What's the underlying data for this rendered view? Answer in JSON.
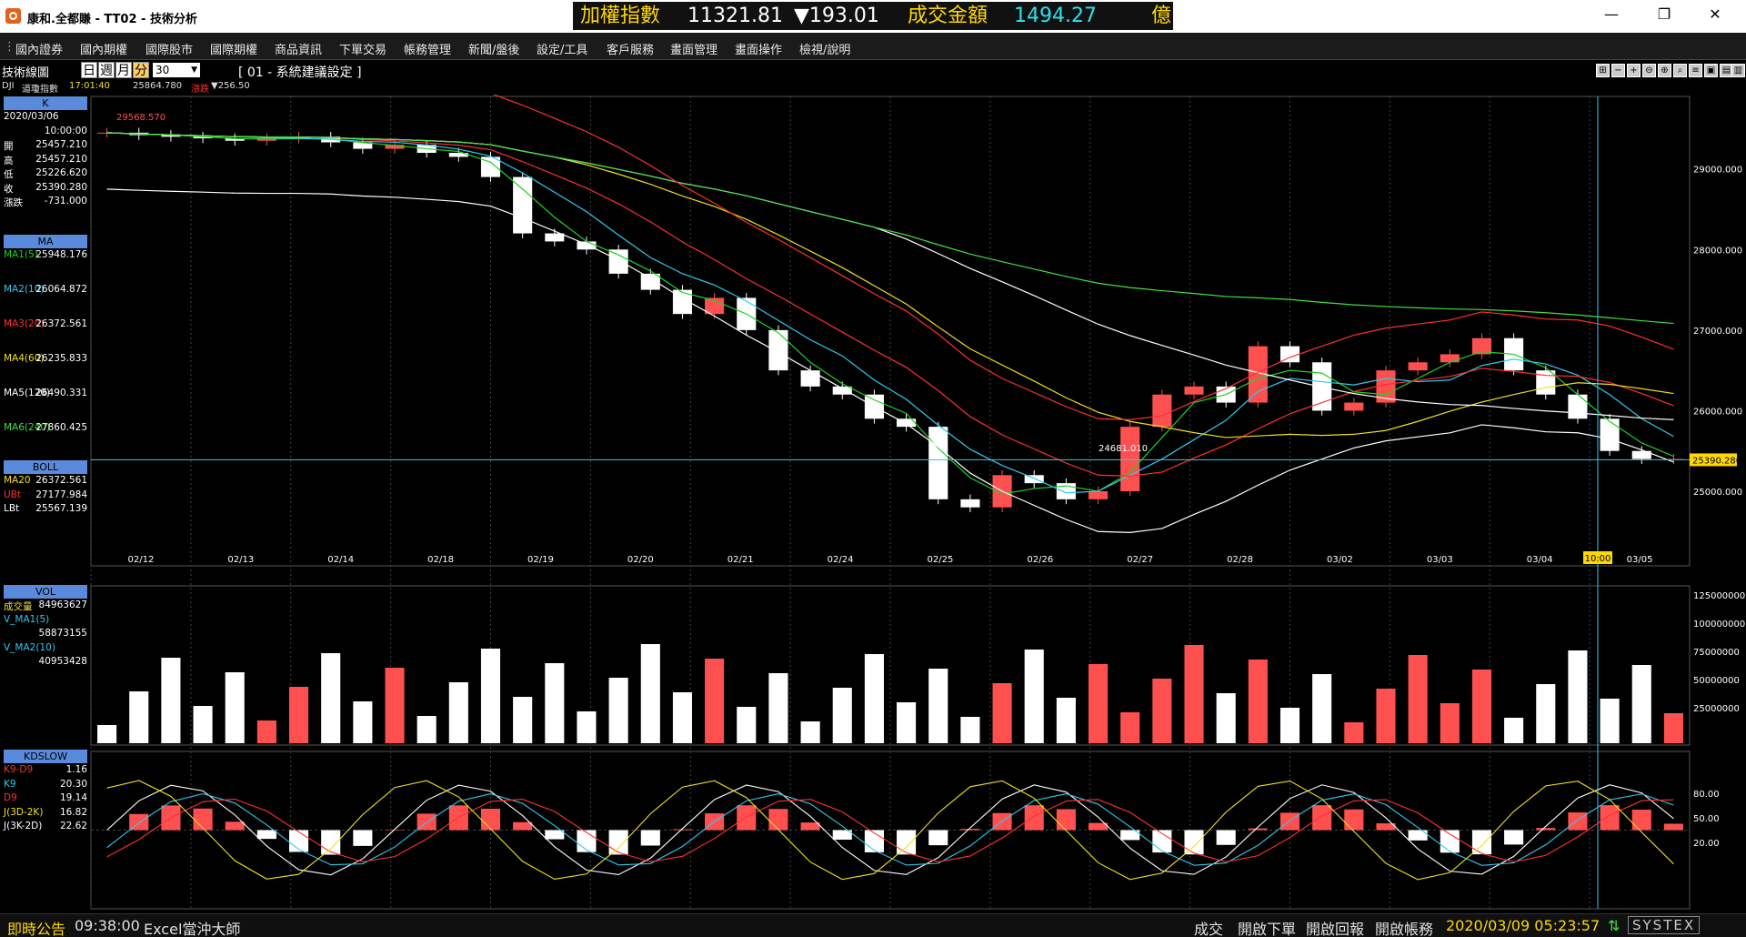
{
  "window": {
    "app_title": "康和.全都賺 - TT02 - 技術分析",
    "minimize": "—",
    "restore": "❐",
    "close": "✕"
  },
  "ticker": {
    "index_label": "加權指數",
    "index_value": "11321.81",
    "change": "▼193.01",
    "volume_label": "成交金額",
    "volume_value": "1494.27",
    "unit": "億"
  },
  "menu": [
    "國內證券",
    "國內期權",
    "國際股市",
    "國際期權",
    "商品資訊",
    "下單交易",
    "帳務管理",
    "新聞/盤後",
    "設定/工具",
    "客戶服務",
    "畫面管理",
    "畫面操作",
    "檢視/說明"
  ],
  "toolbar": {
    "chart_title": "技術線圖",
    "timeframes": [
      "日",
      "週",
      "月",
      "分"
    ],
    "active_timeframe": "分",
    "period_value": "30",
    "setting_text": "[ 01 - 系統建議設定 ]"
  },
  "info": {
    "symbol": "DJI",
    "name": "道瓊指數",
    "time": "17:01:40",
    "price": "25864.780",
    "change_label": "漲跌",
    "change": "▼256.50"
  },
  "left_panel": {
    "k_header": "K",
    "k_rows": [
      {
        "l": "2020/03/06",
        "v": ""
      },
      {
        "l": "",
        "v": "10:00:00"
      },
      {
        "l": "開",
        "v": "25457.210"
      },
      {
        "l": "高",
        "v": "25457.210"
      },
      {
        "l": "低",
        "v": "25226.620"
      },
      {
        "l": "收",
        "v": "25390.280"
      },
      {
        "l": "漲跌",
        "v": "-731.000"
      }
    ],
    "ma_header": "MA",
    "ma_rows": [
      {
        "l": "MA1(5)",
        "v": "25948.176",
        "c": "#20d020"
      },
      {
        "l": "MA2(10)",
        "v": "26064.872",
        "c": "#30c8f0"
      },
      {
        "l": "MA3(20)",
        "v": "26372.561",
        "c": "#ff3030"
      },
      {
        "l": "MA4(60)",
        "v": "26235.833",
        "c": "#f0e020"
      },
      {
        "l": "MA5(120)",
        "v": "26490.331",
        "c": "#ffffff"
      },
      {
        "l": "MA6(240)",
        "v": "27860.425",
        "c": "#40e040"
      }
    ],
    "boll_header": "BOLL",
    "boll_rows": [
      {
        "l": "MA20",
        "v": "26372.561",
        "c": "#f0e020"
      },
      {
        "l": "UBt",
        "v": "27177.984",
        "c": "#ff3030"
      },
      {
        "l": "LBt",
        "v": "25567.139",
        "c": "#ffffff"
      }
    ],
    "vol_header": "VOL",
    "vol_rows": [
      {
        "l": "成交量",
        "v": "84963627",
        "c": "#f0e020"
      },
      {
        "l": "V_MA1(5)",
        "v": "",
        "c": "#30c8f0"
      },
      {
        "l": "",
        "v": "58873155",
        "c": "#30c8f0"
      },
      {
        "l": "V_MA2(10)",
        "v": "",
        "c": "#30c8f0"
      },
      {
        "l": "",
        "v": "40953428",
        "c": "#30c8f0"
      }
    ],
    "kd_header": "KDSLOW",
    "kd_rows": [
      {
        "l": "K9-D9",
        "v": "1.16",
        "c": "#ff3030"
      },
      {
        "l": "K9",
        "v": "20.30",
        "c": "#30c8f0"
      },
      {
        "l": "D9",
        "v": "19.14",
        "c": "#ff3030"
      },
      {
        "l": "J(3D-2K)",
        "v": "16.82",
        "c": "#f0e020"
      },
      {
        "l": "J(3K-2D)",
        "v": "22.62",
        "c": "#ffffff"
      }
    ]
  },
  "chart_data": {
    "type": "line",
    "title": "DJI 道瓊指數 30分",
    "dates": [
      "02/12",
      "02/13",
      "02/14",
      "02/18",
      "02/19",
      "02/20",
      "02/21",
      "02/24",
      "02/25",
      "02/26",
      "02/27",
      "02/28",
      "03/02",
      "03/03",
      "03/04",
      "03/05"
    ],
    "crosshair_time": "10:00",
    "current_price_label": "25390.280",
    "annotations": {
      "high_label": "29568.570",
      "low_label": "24681.010"
    },
    "price_axis": {
      "ticks": [
        "29000.000",
        "28000.000",
        "27000.000",
        "26000.000",
        "25000.000"
      ],
      "ylim": [
        24300,
        29900
      ]
    },
    "volume_axis": {
      "ticks": [
        "125000000",
        "100000000",
        "75000000",
        "50000000",
        "25000000"
      ]
    },
    "kd_axis": {
      "ticks": [
        "80.00",
        "50.00",
        "20.00"
      ]
    },
    "price_close": [
      29450,
      29420,
      29400,
      29380,
      29350,
      29380,
      29400,
      29330,
      29250,
      29300,
      29200,
      29150,
      28900,
      28200,
      28100,
      28000,
      27700,
      27500,
      27200,
      27400,
      27000,
      26500,
      26300,
      26200,
      25900,
      25800,
      24900,
      24800,
      25200,
      25100,
      24900,
      25000,
      25800,
      26200,
      26300,
      26100,
      26800,
      26600,
      26000,
      26100,
      26500,
      26600,
      26700,
      26900,
      26500,
      26200,
      25900,
      25500,
      25400,
      25400
    ]
  }
}
